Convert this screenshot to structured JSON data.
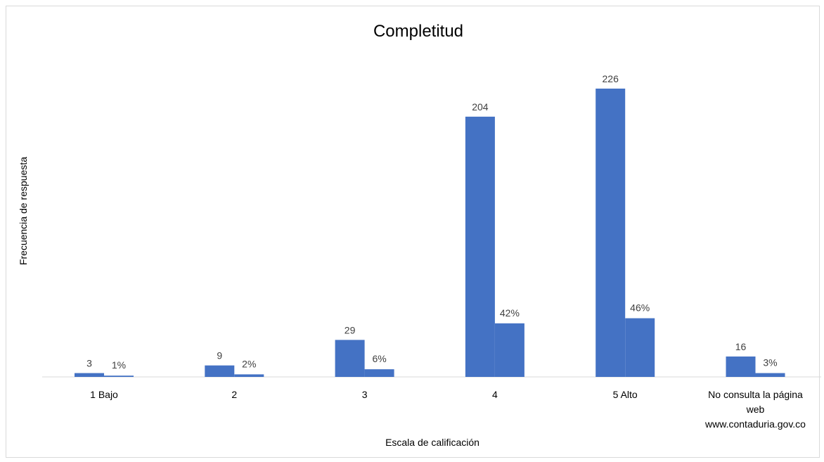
{
  "chart_data": {
    "type": "bar",
    "title": "Completitud",
    "xlabel": "Escala de calificación",
    "ylabel": "Frecuencia de respuesta",
    "categories": [
      [
        "1 Bajo"
      ],
      [
        "2"
      ],
      [
        "3"
      ],
      [
        "4"
      ],
      [
        "5 Alto"
      ],
      [
        "No consulta la página",
        "web",
        "www.contaduria.gov.co"
      ]
    ],
    "series": [
      {
        "values": [
          3,
          9,
          29,
          204,
          226,
          16
        ],
        "color": "#4472c4"
      },
      {
        "values": [
          1,
          2,
          6,
          42,
          46,
          3
        ],
        "labels": [
          "1%",
          "2%",
          "6%",
          "42%",
          "46%",
          "3%"
        ],
        "color": "#4472c4"
      }
    ],
    "ylim": [
      0,
      250
    ],
    "grid": false,
    "legend": "none"
  }
}
